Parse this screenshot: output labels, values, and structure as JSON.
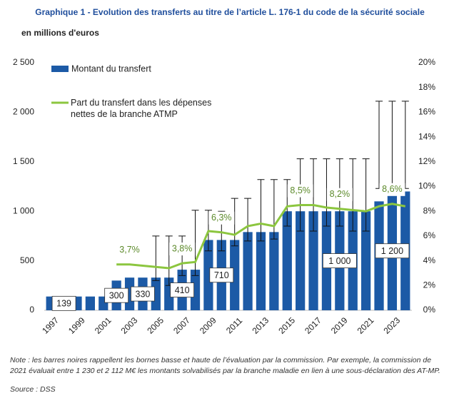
{
  "chart_data": {
    "type": "bar-line",
    "title": "Graphique 1 - Evolution des transferts au titre de l’article L. 176-1 du code de la sécurité sociale",
    "subtitle": "en millions d'euros",
    "categories": [
      "1997",
      null,
      "1999",
      null,
      "2001",
      null,
      "2003",
      null,
      "2005",
      null,
      "2007",
      null,
      "2009",
      null,
      "2011",
      null,
      "2013",
      null,
      "2015",
      null,
      "2017",
      null,
      "2019",
      null,
      "2021",
      null,
      "2023",
      null
    ],
    "series": [
      {
        "name": "Montant du transfert",
        "color": "#1c5aa6",
        "axis": "y",
        "values": [
          139,
          139,
          139,
          139,
          139,
          300,
          330,
          330,
          330,
          330,
          410,
          410,
          710,
          710,
          710,
          790,
          790,
          790,
          1000,
          1000,
          1000,
          1000,
          1000,
          1000,
          1000,
          1100,
          1200,
          1200
        ],
        "value_labels": [
          null,
          "139",
          null,
          null,
          null,
          "300",
          null,
          "330",
          null,
          null,
          "410",
          null,
          null,
          "710",
          null,
          null,
          null,
          null,
          null,
          null,
          null,
          null,
          "1 000",
          null,
          null,
          null,
          "1 200",
          null
        ],
        "low": [
          null,
          null,
          null,
          null,
          null,
          null,
          null,
          null,
          300,
          250,
          350,
          350,
          600,
          600,
          650,
          700,
          700,
          720,
          850,
          800,
          800,
          850,
          850,
          800,
          800,
          1230,
          1230,
          1230
        ],
        "high": [
          null,
          null,
          null,
          null,
          null,
          null,
          null,
          null,
          750,
          750,
          750,
          1010,
          1010,
          1000,
          1130,
          1130,
          1320,
          1320,
          1320,
          1530,
          1530,
          1530,
          1530,
          1530,
          1530,
          2112,
          2112,
          2112
        ]
      },
      {
        "name": "Part du transfert dans les dépenses nettes de la branche ATMP",
        "color": "#8cc63f",
        "axis": "y2",
        "values": [
          null,
          null,
          null,
          null,
          null,
          3.7,
          3.7,
          3.6,
          3.5,
          3.4,
          3.8,
          3.9,
          6.4,
          6.3,
          6.1,
          6.8,
          7.0,
          6.8,
          8.4,
          8.5,
          8.5,
          8.3,
          8.2,
          8.1,
          8.0,
          8.4,
          8.6,
          8.4
        ],
        "value_labels": [
          null,
          null,
          null,
          null,
          null,
          null,
          "3,7%",
          null,
          null,
          null,
          "3,8%",
          null,
          null,
          "6,3%",
          null,
          null,
          null,
          null,
          null,
          "8,5%",
          null,
          null,
          "8,2%",
          null,
          null,
          null,
          "8,6%",
          null
        ]
      }
    ],
    "ylim": [
      0,
      2500
    ],
    "yticks": [
      0,
      {
        "value": 500,
        "label": "500"
      },
      {
        "value": 1000,
        "label": "1 000"
      },
      {
        "value": 1500,
        "label": "1 500"
      },
      {
        "value": 2000,
        "label": "2 000"
      },
      {
        "value": 2500,
        "label": "2 500"
      }
    ],
    "y2lim": [
      0,
      20
    ],
    "y2ticks": [
      {
        "value": 0,
        "label": "0%"
      },
      {
        "value": 2,
        "label": "2%"
      },
      {
        "value": 4,
        "label": "4%"
      },
      {
        "value": 6,
        "label": "6%"
      },
      {
        "value": 8,
        "label": "8%"
      },
      {
        "value": 10,
        "label": "10%"
      },
      {
        "value": 12,
        "label": "12%"
      },
      {
        "value": 14,
        "label": "14%"
      },
      {
        "value": 16,
        "label": "16%"
      },
      {
        "value": 18,
        "label": "18%"
      },
      {
        "value": 20,
        "label": "20%"
      }
    ],
    "note": "Note : les barres noires rappellent les bornes basse et haute de l’évaluation par la commission. Par exemple, la commission de 2021 évaluait entre 1 230 et 2 112 M€ les montants solvabilisés par la branche maladie en lien à une sous-déclaration des AT-MP.",
    "source": "Source : DSS"
  }
}
